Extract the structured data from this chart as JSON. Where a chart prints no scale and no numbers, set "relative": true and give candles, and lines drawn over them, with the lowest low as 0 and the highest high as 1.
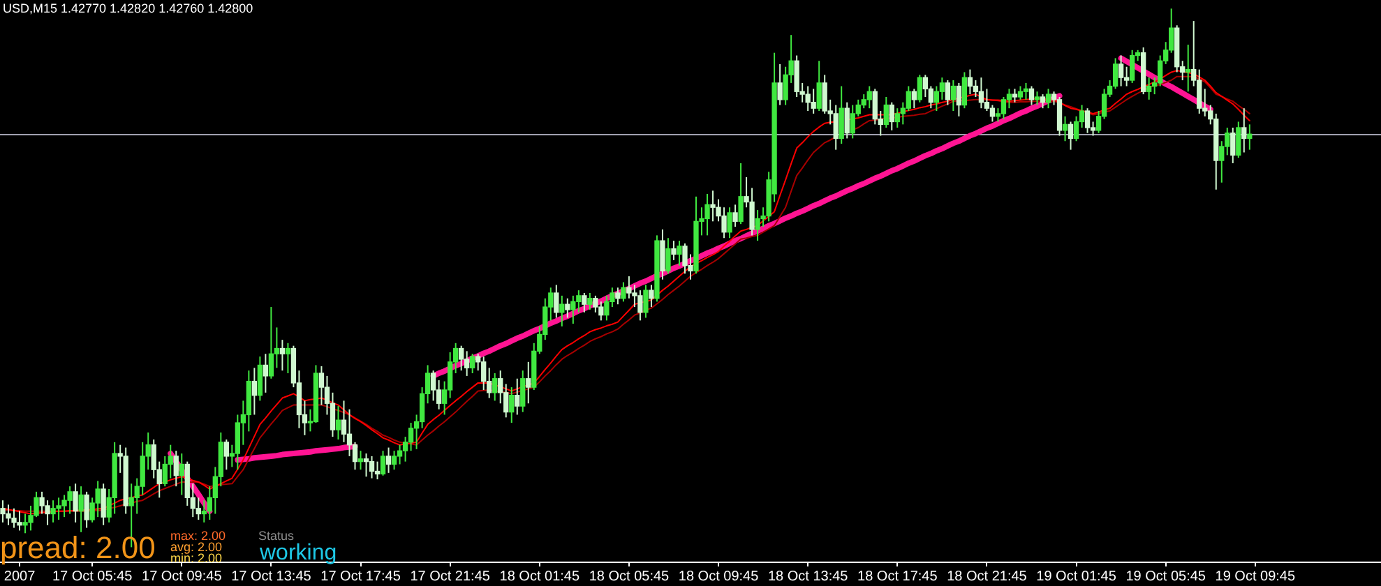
{
  "chart_data": {
    "type": "candlestick",
    "title": "USD,M15 1.42770 1.42820 1.42760 1.42800",
    "relative": true,
    "categories": [
      null,
      null,
      null,
      "2007",
      null,
      null,
      null,
      null,
      null,
      null,
      null,
      null,
      null,
      null,
      null,
      null,
      "17 Oct 05:45",
      null,
      null,
      null,
      null,
      null,
      null,
      null,
      null,
      null,
      null,
      null,
      null,
      null,
      null,
      null,
      "17 Oct 09:45",
      null,
      null,
      null,
      null,
      null,
      null,
      null,
      null,
      null,
      null,
      null,
      null,
      null,
      null,
      null,
      "17 Oct 13:45",
      null,
      null,
      null,
      null,
      null,
      null,
      null,
      null,
      null,
      null,
      null,
      null,
      null,
      null,
      null,
      "17 Oct 17:45",
      null,
      null,
      null,
      null,
      null,
      null,
      null,
      null,
      null,
      null,
      null,
      null,
      null,
      null,
      null,
      "17 Oct 21:45",
      null,
      null,
      null,
      null,
      null,
      null,
      null,
      null,
      null,
      null,
      null,
      null,
      null,
      null,
      null,
      "18 Oct 01:45",
      null,
      null,
      null,
      null,
      null,
      null,
      null,
      null,
      null,
      null,
      null,
      null,
      null,
      null,
      null,
      "18 Oct 05:45",
      null,
      null,
      null,
      null,
      null,
      null,
      null,
      null,
      null,
      null,
      null,
      null,
      null,
      null,
      null,
      "18 Oct 09:45",
      null,
      null,
      null,
      null,
      null,
      null,
      null,
      null,
      null,
      null,
      null,
      null,
      null,
      null,
      null,
      "18 Oct 13:45",
      null,
      null,
      null,
      null,
      null,
      null,
      null,
      null,
      null,
      null,
      null,
      null,
      null,
      null,
      null,
      "18 Oct 17:45",
      null,
      null,
      null,
      null,
      null,
      null,
      null,
      null,
      null,
      null,
      null,
      null,
      null,
      null,
      null,
      "18 Oct 21:45",
      null,
      null,
      null,
      null,
      null,
      null,
      null,
      null,
      null,
      null,
      null,
      null,
      null,
      null,
      null,
      "19 Oct 01:45",
      null,
      null,
      null,
      null,
      null,
      null,
      null,
      null,
      null,
      null,
      null,
      null,
      null,
      null,
      null,
      "19 Oct 05:45",
      null,
      null,
      null,
      null,
      null,
      null,
      null,
      null,
      null,
      null,
      null,
      null,
      null,
      null,
      null,
      "19 Oct 09:45",
      null,
      null,
      null,
      null,
      null,
      null,
      null,
      null,
      null,
      null,
      null,
      null,
      null,
      null,
      null,
      null,
      null,
      null,
      null,
      null,
      null,
      null
    ],
    "colors": [
      "#d0f8d0",
      "#d0f8d0",
      "#d0f8d0",
      "#d0f8d0",
      "#40e840",
      "#40e840",
      "#40e840",
      "#d0f8d0",
      "#d0f8d0",
      "#40e840",
      "#40e840",
      "#40e840",
      "#40e840",
      "#d0f8d0",
      "#40e840",
      "#d0f8d0",
      "#40e840",
      "#40e840",
      "#d0f8d0",
      "#40e840",
      "#40e840",
      "#d0f8d0",
      "#d0f8d0",
      "#40e840",
      "#40e840",
      "#40e840",
      "#40e840",
      "#d0f8d0",
      "#d0f8d0",
      "#40e840",
      "#40e840",
      "#d0f8d0",
      "#40e840",
      "#d0f8d0",
      "#d0f8d0",
      "#d0f8d0",
      "#40e840",
      "#40e840",
      "#40e840",
      "#40e840",
      "#d0f8d0",
      "#40e840",
      "#40e840",
      "#40e840",
      "#40e840",
      "#d0f8d0",
      "#40e840",
      "#d0f8d0",
      "#40e840",
      "#40e840",
      "#d0f8d0",
      "#40e840",
      "#d0f8d0",
      "#d0f8d0",
      "#d0f8d0",
      "#40e840",
      "#40e840",
      "#d0f8d0",
      "#d0f8d0",
      "#d0f8d0",
      "#40e840",
      "#d0f8d0",
      "#d0f8d0",
      "#d0f8d0",
      "#40e840",
      "#d0f8d0",
      "#d0f8d0",
      "#d0f8d0",
      "#40e840",
      "#d0f8d0",
      "#40e840",
      "#40e840",
      "#40e840",
      "#40e840",
      "#40e840",
      "#40e840",
      "#40e840",
      "#d0f8d0",
      "#d0f8d0",
      "#40e840",
      "#40e840",
      "#40e840",
      "#d0f8d0",
      "#d0f8d0",
      "#40e840",
      "#d0f8d0",
      "#d0f8d0",
      "#d0f8d0",
      "#40e840",
      "#d0f8d0",
      "#d0f8d0",
      "#40e840",
      "#d0f8d0",
      "#40e840",
      "#d0f8d0",
      "#40e840",
      "#40e840",
      "#40e840",
      "#40e840",
      "#d0f8d0",
      "#40e840",
      "#d0f8d0",
      "#40e840",
      "#40e840",
      "#d0f8d0",
      "#40e840",
      "#d0f8d0",
      "#d0f8d0",
      "#40e840",
      "#40e840",
      "#d0f8d0",
      "#40e840",
      "#d0f8d0",
      "#d0f8d0",
      "#d0f8d0",
      "#40e840",
      "#d0f8d0",
      "#40e840",
      "#d0f8d0",
      "#40e840",
      "#d0f8d0",
      "#40e840",
      "#d0f8d0",
      "#d0f8d0",
      "#40e840",
      "#40e840",
      "#40e840",
      "#d0f8d0",
      "#d0f8d0",
      "#d0f8d0",
      "#40e840",
      "#d0f8d0",
      "#40e840",
      "#d0f8d0",
      "#d0f8d0",
      "#40e840",
      "#40e840",
      "#40e840",
      "#40e840",
      "#d0f8d0",
      "#40e840",
      "#40e840",
      "#d0f8d0",
      "#d0f8d0",
      "#d0f8d0",
      "#d0f8d0",
      "#40e840",
      "#d0f8d0",
      "#d0f8d0",
      "#d0f8d0",
      "#40e840",
      "#d0f8d0",
      "#40e840",
      "#40e840",
      "#40e840",
      "#40e840",
      "#d0f8d0",
      "#d0f8d0",
      "#40e840",
      "#d0f8d0",
      "#40e840",
      "#40e840",
      "#40e840",
      "#d0f8d0",
      "#40e840",
      "#d0f8d0",
      "#d0f8d0",
      "#40e840",
      "#40e840",
      "#d0f8d0",
      "#40e840",
      "#d0f8d0",
      "#40e840",
      "#d0f8d0",
      "#d0f8d0",
      "#d0f8d0",
      "#d0f8d0",
      "#d0f8d0",
      "#40e840",
      "#40e840",
      "#40e840",
      "#d0f8d0",
      "#40e840",
      "#40e840",
      "#d0f8d0",
      "#40e840",
      "#d0f8d0",
      "#40e840",
      "#d0f8d0",
      "#d0f8d0",
      "#40e840",
      "#d0f8d0",
      "#40e840",
      "#40e840",
      "#d0f8d0",
      "#d0f8d0",
      "#40e840",
      "#40e840",
      "#40e840",
      "#40e840",
      "#d0f8d0",
      "#d0f8d0",
      "#40e840",
      "#40e840",
      "#d0f8d0",
      "#40e840",
      "#40e840",
      "#40e840",
      "#40e840",
      "#40e840",
      "#d0f8d0",
      "#d0f8d0",
      "#40e840",
      "#d0f8d0",
      "#d0f8d0",
      "#d0f8d0",
      "#d0f8d0",
      "#d0f8d0",
      "#40e840",
      "#40e840",
      "#d0f8d0",
      "#40e840",
      "#d0f8d0",
      "#40e840",
      null,
      null,
      null,
      null,
      null,
      null,
      null,
      null,
      null,
      null,
      null,
      null,
      null,
      null,
      null,
      null,
      null,
      null,
      null,
      null,
      null,
      null,
      null
    ],
    "ohlc": [
      [
        0.072,
        0.087,
        0.046,
        0.062
      ],
      [
        0.062,
        0.079,
        0.041,
        0.054
      ],
      [
        0.054,
        0.072,
        0.036,
        0.046
      ],
      [
        0.046,
        0.067,
        0.031,
        0.041
      ],
      [
        0.041,
        0.062,
        0.026,
        0.046
      ],
      [
        0.046,
        0.077,
        0.031,
        0.059
      ],
      [
        0.059,
        0.103,
        0.056,
        0.092
      ],
      [
        0.092,
        0.103,
        0.062,
        0.077
      ],
      [
        0.077,
        0.087,
        0.041,
        0.062
      ],
      [
        0.062,
        0.087,
        0.046,
        0.072
      ],
      [
        0.072,
        0.092,
        0.051,
        0.077
      ],
      [
        0.077,
        0.097,
        0.056,
        0.087
      ],
      [
        0.087,
        0.113,
        0.062,
        0.103
      ],
      [
        0.103,
        0.118,
        0.046,
        0.067
      ],
      [
        0.067,
        0.113,
        0.028,
        0.097
      ],
      [
        0.097,
        0.103,
        0.036,
        0.051
      ],
      [
        0.051,
        0.092,
        0.046,
        0.082
      ],
      [
        0.082,
        0.123,
        0.056,
        0.108
      ],
      [
        0.108,
        0.118,
        0.041,
        0.056
      ],
      [
        0.056,
        0.108,
        0.046,
        0.092
      ],
      [
        0.092,
        0.195,
        0.062,
        0.174
      ],
      [
        0.174,
        0.19,
        0.138,
        0.169
      ],
      [
        0.169,
        0.185,
        0.062,
        0.077
      ],
      [
        0.077,
        0.118,
        0,
        0.092
      ],
      [
        0.092,
        0.128,
        0.062,
        0.113
      ],
      [
        0.113,
        0.195,
        0.097,
        0.169
      ],
      [
        0.169,
        0.213,
        0.144,
        0.19
      ],
      [
        0.19,
        0.2,
        0.128,
        0.144
      ],
      [
        0.144,
        0.159,
        0.092,
        0.118
      ],
      [
        0.118,
        0.169,
        0.113,
        0.154
      ],
      [
        0.154,
        0.19,
        0.128,
        0.169
      ],
      [
        0.169,
        0.179,
        0.113,
        0.133
      ],
      [
        0.133,
        0.174,
        0.097,
        0.154
      ],
      [
        0.154,
        0.159,
        0.077,
        0.092
      ],
      [
        0.092,
        0.118,
        0.056,
        0.072
      ],
      [
        0.072,
        0.092,
        0.051,
        0.062
      ],
      [
        0.062,
        0.087,
        0.046,
        0.067
      ],
      [
        0.067,
        0.113,
        0.051,
        0.092
      ],
      [
        0.092,
        0.149,
        0.062,
        0.131
      ],
      [
        0.131,
        0.213,
        0.113,
        0.195
      ],
      [
        0.195,
        0.2,
        0.144,
        0.169
      ],
      [
        0.169,
        0.19,
        0.149,
        0.174
      ],
      [
        0.174,
        0.246,
        0.144,
        0.231
      ],
      [
        0.231,
        0.272,
        0.19,
        0.246
      ],
      [
        0.246,
        0.328,
        0.215,
        0.308
      ],
      [
        0.308,
        0.333,
        0.246,
        0.282
      ],
      [
        0.282,
        0.354,
        0.272,
        0.338
      ],
      [
        0.338,
        0.359,
        0.287,
        0.318
      ],
      [
        0.318,
        0.446,
        0.313,
        0.359
      ],
      [
        0.359,
        0.408,
        0.333,
        0.369
      ],
      [
        0.369,
        0.385,
        0.328,
        0.359
      ],
      [
        0.359,
        0.379,
        0.323,
        0.369
      ],
      [
        0.369,
        0.374,
        0.297,
        0.305
      ],
      [
        0.305,
        0.328,
        0.221,
        0.246
      ],
      [
        0.246,
        0.272,
        0.208,
        0.231
      ],
      [
        0.231,
        0.256,
        0.215,
        0.233
      ],
      [
        0.233,
        0.338,
        0.231,
        0.323
      ],
      [
        0.323,
        0.336,
        0.264,
        0.297
      ],
      [
        0.297,
        0.318,
        0.246,
        0.267
      ],
      [
        0.267,
        0.287,
        0.205,
        0.218
      ],
      [
        0.218,
        0.262,
        0.2,
        0.236
      ],
      [
        0.236,
        0.272,
        0.195,
        0.21
      ],
      [
        0.21,
        0.256,
        0.169,
        0.19
      ],
      [
        0.19,
        0.195,
        0.144,
        0.159
      ],
      [
        0.159,
        0.179,
        0.144,
        0.164
      ],
      [
        0.164,
        0.174,
        0.131,
        0.159
      ],
      [
        0.159,
        0.169,
        0.128,
        0.141
      ],
      [
        0.141,
        0.159,
        0.126,
        0.136
      ],
      [
        0.136,
        0.179,
        0.133,
        0.169
      ],
      [
        0.169,
        0.185,
        0.138,
        0.154
      ],
      [
        0.154,
        0.179,
        0.144,
        0.169
      ],
      [
        0.169,
        0.19,
        0.154,
        0.179
      ],
      [
        0.179,
        0.205,
        0.159,
        0.195
      ],
      [
        0.195,
        0.231,
        0.179,
        0.221
      ],
      [
        0.221,
        0.246,
        0.182,
        0.233
      ],
      [
        0.233,
        0.297,
        0.221,
        0.285
      ],
      [
        0.285,
        0.338,
        0.267,
        0.323
      ],
      [
        0.323,
        0.328,
        0.272,
        0.292
      ],
      [
        0.292,
        0.31,
        0.256,
        0.267
      ],
      [
        0.267,
        0.308,
        0.246,
        0.292
      ],
      [
        0.292,
        0.362,
        0.277,
        0.344
      ],
      [
        0.344,
        0.379,
        0.323,
        0.369
      ],
      [
        0.369,
        0.374,
        0.328,
        0.349
      ],
      [
        0.349,
        0.364,
        0.318,
        0.333
      ],
      [
        0.333,
        0.359,
        0.323,
        0.354
      ],
      [
        0.354,
        0.359,
        0.328,
        0.344
      ],
      [
        0.344,
        0.354,
        0.292,
        0.308
      ],
      [
        0.308,
        0.333,
        0.277,
        0.287
      ],
      [
        0.287,
        0.323,
        0.272,
        0.313
      ],
      [
        0.313,
        0.328,
        0.267,
        0.287
      ],
      [
        0.287,
        0.303,
        0.241,
        0.251
      ],
      [
        0.251,
        0.297,
        0.231,
        0.282
      ],
      [
        0.282,
        0.313,
        0.246,
        0.262
      ],
      [
        0.262,
        0.328,
        0.251,
        0.313
      ],
      [
        0.313,
        0.344,
        0.267,
        0.297
      ],
      [
        0.297,
        0.379,
        0.292,
        0.364
      ],
      [
        0.364,
        0.41,
        0.359,
        0.395
      ],
      [
        0.395,
        0.462,
        0.385,
        0.446
      ],
      [
        0.446,
        0.482,
        0.421,
        0.472
      ],
      [
        0.472,
        0.487,
        0.426,
        0.436
      ],
      [
        0.436,
        0.467,
        0.41,
        0.451
      ],
      [
        0.451,
        0.462,
        0.426,
        0.441
      ],
      [
        0.441,
        0.467,
        0.415,
        0.456
      ],
      [
        0.456,
        0.477,
        0.436,
        0.467
      ],
      [
        0.467,
        0.472,
        0.436,
        0.451
      ],
      [
        0.451,
        0.472,
        0.441,
        0.462
      ],
      [
        0.462,
        0.467,
        0.436,
        0.446
      ],
      [
        0.446,
        0.456,
        0.421,
        0.431
      ],
      [
        0.431,
        0.467,
        0.421,
        0.456
      ],
      [
        0.456,
        0.482,
        0.446,
        0.472
      ],
      [
        0.472,
        0.482,
        0.451,
        0.462
      ],
      [
        0.462,
        0.492,
        0.456,
        0.482
      ],
      [
        0.482,
        0.503,
        0.462,
        0.472
      ],
      [
        0.472,
        0.487,
        0.446,
        0.467
      ],
      [
        0.467,
        0.477,
        0.421,
        0.436
      ],
      [
        0.436,
        0.487,
        0.426,
        0.477
      ],
      [
        0.477,
        0.487,
        0.446,
        0.462
      ],
      [
        0.462,
        0.579,
        0.456,
        0.569
      ],
      [
        0.569,
        0.59,
        0.497,
        0.513
      ],
      [
        0.513,
        0.574,
        0.508,
        0.554
      ],
      [
        0.554,
        0.569,
        0.533,
        0.544
      ],
      [
        0.544,
        0.569,
        0.523,
        0.559
      ],
      [
        0.559,
        0.564,
        0.508,
        0.523
      ],
      [
        0.523,
        0.544,
        0.497,
        0.513
      ],
      [
        0.513,
        0.651,
        0.508,
        0.605
      ],
      [
        0.605,
        0.631,
        0.579,
        0.61
      ],
      [
        0.61,
        0.656,
        0.579,
        0.636
      ],
      [
        0.636,
        0.662,
        0.605,
        0.631
      ],
      [
        0.631,
        0.646,
        0.605,
        0.615
      ],
      [
        0.615,
        0.631,
        0.574,
        0.585
      ],
      [
        0.585,
        0.631,
        0.574,
        0.621
      ],
      [
        0.621,
        0.636,
        0.595,
        0.605
      ],
      [
        0.605,
        0.713,
        0.6,
        0.651
      ],
      [
        0.651,
        0.687,
        0.631,
        0.641
      ],
      [
        0.641,
        0.667,
        0.579,
        0.59
      ],
      [
        0.59,
        0.626,
        0.569,
        0.61
      ],
      [
        0.61,
        0.631,
        0.595,
        0.615
      ],
      [
        0.615,
        0.697,
        0.605,
        0.682
      ],
      [
        0.656,
        0.918,
        0.641,
        0.862
      ],
      [
        0.862,
        0.897,
        0.821,
        0.831
      ],
      [
        0.831,
        0.892,
        0.821,
        0.877
      ],
      [
        0.877,
        0.951,
        0.862,
        0.903
      ],
      [
        0.903,
        0.913,
        0.836,
        0.846
      ],
      [
        0.846,
        0.862,
        0.826,
        0.841
      ],
      [
        0.841,
        0.856,
        0.81,
        0.826
      ],
      [
        0.826,
        0.851,
        0.805,
        0.815
      ],
      [
        0.815,
        0.903,
        0.81,
        0.862
      ],
      [
        0.862,
        0.877,
        0.805,
        0.81
      ],
      [
        0.81,
        0.831,
        0.785,
        0.805
      ],
      [
        0.805,
        0.821,
        0.738,
        0.759
      ],
      [
        0.759,
        0.856,
        0.749,
        0.815
      ],
      [
        0.815,
        0.826,
        0.759,
        0.769
      ],
      [
        0.769,
        0.821,
        0.759,
        0.805
      ],
      [
        0.805,
        0.831,
        0.8,
        0.821
      ],
      [
        0.821,
        0.841,
        0.815,
        0.831
      ],
      [
        0.831,
        0.856,
        0.815,
        0.846
      ],
      [
        0.846,
        0.851,
        0.785,
        0.795
      ],
      [
        0.795,
        0.81,
        0.764,
        0.785
      ],
      [
        0.785,
        0.836,
        0.779,
        0.821
      ],
      [
        0.821,
        0.826,
        0.774,
        0.79
      ],
      [
        0.79,
        0.815,
        0.779,
        0.805
      ],
      [
        0.805,
        0.826,
        0.785,
        0.815
      ],
      [
        0.815,
        0.856,
        0.81,
        0.846
      ],
      [
        0.846,
        0.851,
        0.815,
        0.831
      ],
      [
        0.831,
        0.877,
        0.826,
        0.872
      ],
      [
        0.872,
        0.877,
        0.836,
        0.851
      ],
      [
        0.851,
        0.856,
        0.815,
        0.826
      ],
      [
        0.826,
        0.856,
        0.81,
        0.846
      ],
      [
        0.846,
        0.872,
        0.831,
        0.862
      ],
      [
        0.862,
        0.867,
        0.821,
        0.831
      ],
      [
        0.831,
        0.867,
        0.81,
        0.856
      ],
      [
        0.856,
        0.862,
        0.8,
        0.821
      ],
      [
        0.821,
        0.882,
        0.815,
        0.872
      ],
      [
        0.872,
        0.887,
        0.841,
        0.856
      ],
      [
        0.856,
        0.867,
        0.836,
        0.846
      ],
      [
        0.846,
        0.872,
        0.815,
        0.826
      ],
      [
        0.826,
        0.851,
        0.81,
        0.815
      ],
      [
        0.815,
        0.821,
        0.79,
        0.8
      ],
      [
        0.8,
        0.815,
        0.79,
        0.805
      ],
      [
        0.805,
        0.836,
        0.795,
        0.831
      ],
      [
        0.831,
        0.851,
        0.815,
        0.841
      ],
      [
        0.841,
        0.851,
        0.826,
        0.836
      ],
      [
        0.836,
        0.856,
        0.831,
        0.846
      ],
      [
        0.846,
        0.862,
        0.831,
        0.851
      ],
      [
        0.851,
        0.856,
        0.821,
        0.831
      ],
      [
        0.831,
        0.846,
        0.821,
        0.836
      ],
      [
        0.836,
        0.841,
        0.815,
        0.826
      ],
      [
        0.826,
        0.851,
        0.815,
        0.841
      ],
      [
        0.841,
        0.846,
        0.821,
        0.831
      ],
      [
        0.831,
        0.836,
        0.764,
        0.774
      ],
      [
        0.774,
        0.8,
        0.754,
        0.785
      ],
      [
        0.785,
        0.79,
        0.738,
        0.759
      ],
      [
        0.759,
        0.8,
        0.754,
        0.79
      ],
      [
        0.79,
        0.821,
        0.779,
        0.81
      ],
      [
        0.81,
        0.815,
        0.769,
        0.779
      ],
      [
        0.779,
        0.79,
        0.764,
        0.774
      ],
      [
        0.774,
        0.81,
        0.769,
        0.8
      ],
      [
        0.8,
        0.851,
        0.795,
        0.841
      ],
      [
        0.841,
        0.867,
        0.836,
        0.856
      ],
      [
        0.856,
        0.908,
        0.851,
        0.897
      ],
      [
        0.897,
        0.913,
        0.856,
        0.872
      ],
      [
        0.872,
        0.892,
        0.856,
        0.867
      ],
      [
        0.867,
        0.923,
        0.862,
        0.913
      ],
      [
        0.913,
        0.923,
        0.903,
        0.918
      ],
      [
        0.918,
        0.928,
        0.841,
        0.846
      ],
      [
        0.846,
        0.872,
        0.831,
        0.856
      ],
      [
        0.856,
        0.872,
        0.841,
        0.862
      ],
      [
        0.862,
        0.913,
        0.856,
        0.903
      ],
      [
        0.903,
        0.938,
        0.897,
        0.923
      ],
      [
        0.923,
        1,
        0.918,
        0.964
      ],
      [
        0.964,
        0.969,
        0.882,
        0.892
      ],
      [
        0.892,
        0.903,
        0.867,
        0.882
      ],
      [
        0.882,
        0.933,
        0.846,
        0.887
      ],
      [
        0.887,
        0.977,
        0.856,
        0.867
      ],
      [
        0.867,
        0.887,
        0.805,
        0.815
      ],
      [
        0.815,
        0.851,
        0.8,
        0.81
      ],
      [
        0.81,
        0.821,
        0.785,
        0.795
      ],
      [
        0.795,
        0.805,
        0.664,
        0.718
      ],
      [
        0.718,
        0.754,
        0.677,
        0.744
      ],
      [
        0.744,
        0.779,
        0.728,
        0.769
      ],
      [
        0.769,
        0.779,
        0.713,
        0.728
      ],
      [
        0.728,
        0.79,
        0.723,
        0.779
      ],
      [
        0.779,
        0.815,
        0.733,
        0.759
      ],
      [
        0.759,
        0.785,
        0.738,
        0.767
      ],
      null,
      null,
      null,
      null,
      null,
      null,
      null,
      null,
      null,
      null,
      null,
      null,
      null,
      null,
      null,
      null,
      null,
      null,
      null,
      null,
      null,
      null,
      null
    ],
    "series": [
      {
        "type": "line",
        "color": "#ff0000",
        "values": [
          0.072,
          0.07,
          0.068,
          0.066,
          0.064,
          0.062,
          0.063,
          0.064,
          0.065,
          0.066,
          0.067,
          0.067,
          0.068,
          0.068,
          0.069,
          0.069,
          0.07,
          0.071,
          0.072,
          0.077,
          0.082,
          0.087,
          0.09,
          0.092,
          0.095,
          0.097,
          0.104,
          0.111,
          0.118,
          0.121,
          0.125,
          0.128,
          0.131,
          0.128,
          0.124,
          0.121,
          0.115,
          0.108,
          0.113,
          0.118,
          0.123,
          0.128,
          0.145,
          0.162,
          0.184,
          0.206,
          0.228,
          0.24,
          0.253,
          0.265,
          0.277,
          0.281,
          0.285,
          0.279,
          0.272,
          0.274,
          0.275,
          0.277,
          0.273,
          0.268,
          0.264,
          0.255,
          0.246,
          0.239,
          0.233,
          0.226,
          0.218,
          0.211,
          0.203,
          0.199,
          0.194,
          0.19,
          0.192,
          0.193,
          0.195,
          0.212,
          0.228,
          0.237,
          0.245,
          0.254,
          0.263,
          0.272,
          0.28,
          0.289,
          0.297,
          0.305,
          0.305,
          0.305,
          0.301,
          0.298,
          0.294,
          0.29,
          0.294,
          0.298,
          0.301,
          0.305,
          0.317,
          0.33,
          0.342,
          0.355,
          0.367,
          0.374,
          0.38,
          0.387,
          0.393,
          0.4,
          0.404,
          0.407,
          0.411,
          0.414,
          0.418,
          0.429,
          0.44,
          0.451,
          0.454,
          0.456,
          0.459,
          0.468,
          0.477,
          0.485,
          0.494,
          0.503,
          0.512,
          0.521,
          0.527,
          0.532,
          0.538,
          0.543,
          0.549,
          0.559,
          0.568,
          0.578,
          0.587,
          0.59,
          0.594,
          0.597,
          0.606,
          0.614,
          0.623,
          0.653,
          0.682,
          0.712,
          0.741,
          0.751,
          0.762,
          0.772,
          0.78,
          0.787,
          0.789,
          0.79,
          null,
          0.794,
          0.795,
          0.797,
          0.8,
          0.803,
          0.803,
          0.803,
          0.803,
          0.803,
          0.806,
          0.808,
          0.811,
          0.813,
          0.816,
          0.818,
          0.821,
          0.823,
          0.826,
          0.828,
          0.831,
          0.834,
          0.836,
          0.839,
          0.841,
          0.836,
          0.831,
          0.83,
          0.83,
          0.829,
          0.828,
          0.829,
          0.83,
          0.831,
          0.832,
          0.833,
          0.832,
          0.832,
          0.831,
          0.826,
          0.82,
          0.815,
          0.813,
          0.81,
          0.808,
          0.805,
          0.808,
          0.812,
          0.815,
          0.824,
          0.832,
          0.841,
          0.846,
          0.85,
          0.855,
          0.859,
          0.864,
          0.869,
          0.876,
          0.882,
          0.885,
          0.883,
          0.881,
          0.879,
          0.873,
          0.867,
          0.856,
          0.844,
          0.837,
          0.83,
          0.823,
          0.813,
          0.802,
          0.792,
          null,
          null,
          null,
          null,
          null,
          null,
          null,
          null,
          null,
          null,
          null,
          null,
          null,
          null,
          null,
          null,
          null,
          null,
          null,
          null,
          null,
          null,
          null
        ]
      },
      {
        "type": "line",
        "color": "#a80000",
        "values": [
          0.069,
          0.069,
          0.068,
          0.068,
          0.067,
          0.067,
          0.067,
          0.067,
          0.067,
          0.067,
          0.067,
          0.067,
          0.067,
          0.067,
          0.067,
          0.067,
          0.068,
          0.068,
          0.069,
          0.072,
          0.074,
          0.077,
          0.08,
          0.082,
          0.085,
          0.087,
          0.093,
          0.099,
          0.105,
          0.109,
          0.113,
          0.117,
          0.121,
          0.121,
          0.121,
          0.121,
          0.117,
          0.113,
          0.114,
          0.116,
          0.117,
          0.118,
          0.131,
          0.144,
          0.164,
          0.183,
          0.203,
          0.216,
          0.229,
          0.241,
          0.254,
          0.259,
          0.264,
          0.264,
          0.264,
          0.264,
          0.264,
          0.264,
          0.261,
          0.257,
          0.254,
          0.25,
          0.246,
          0.24,
          0.234,
          0.228,
          0.221,
          0.215,
          0.208,
          0.204,
          0.199,
          0.195,
          0.193,
          0.192,
          0.19,
          0.199,
          0.208,
          0.216,
          0.225,
          0.233,
          0.242,
          0.251,
          0.261,
          0.271,
          0.28,
          0.29,
          0.291,
          0.292,
          0.29,
          0.289,
          0.287,
          0.285,
          0.288,
          0.291,
          0.294,
          0.297,
          0.307,
          0.318,
          0.328,
          0.339,
          0.349,
          0.356,
          0.362,
          0.369,
          0.375,
          0.382,
          0.387,
          0.391,
          0.396,
          0.4,
          0.405,
          0.414,
          0.422,
          0.431,
          0.435,
          0.44,
          0.444,
          0.452,
          0.46,
          0.469,
          0.477,
          0.485,
          0.494,
          0.503,
          0.51,
          0.516,
          0.523,
          0.529,
          0.536,
          0.545,
          0.554,
          0.563,
          0.572,
          0.574,
          0.577,
          0.579,
          0.585,
          0.591,
          0.597,
          0.614,
          0.631,
          0.661,
          0.69,
          0.704,
          0.719,
          0.733,
          0.742,
          0.751,
          0.756,
          0.762,
          null,
          null,
          0.775,
          0.779,
          0.786,
          0.792,
          0.793,
          0.795,
          0.796,
          0.797,
          0.798,
          0.8,
          0.801,
          0.802,
          0.804,
          0.805,
          0.81,
          0.814,
          0.819,
          0.823,
          0.828,
          0.829,
          0.829,
          0.83,
          0.831,
          0.831,
          0.831,
          0.83,
          0.829,
          0.827,
          0.826,
          0.826,
          0.827,
          0.827,
          0.828,
          0.828,
          0.828,
          0.828,
          0.828,
          0.825,
          0.821,
          0.818,
          0.814,
          0.81,
          0.807,
          0.803,
          0.805,
          0.808,
          0.81,
          0.817,
          0.824,
          0.831,
          0.837,
          0.843,
          0.848,
          0.854,
          0.857,
          0.859,
          0.863,
          0.867,
          0.874,
          0.874,
          0.874,
          0.874,
          0.869,
          0.864,
          0.853,
          0.841,
          0.837,
          0.832,
          0.828,
          0.82,
          0.813,
          0.805,
          null,
          null,
          null,
          null,
          null,
          null,
          null,
          null,
          null,
          null,
          null,
          null,
          null,
          null,
          null,
          null,
          null,
          null,
          null,
          null,
          null,
          null,
          null
        ]
      },
      {
        "type": "line",
        "color": "#ff1493",
        "values": [
          null,
          null,
          null,
          null,
          null,
          null,
          null,
          null,
          null,
          null,
          null,
          null,
          null,
          null,
          null,
          null,
          null,
          null,
          null,
          null,
          null,
          null,
          null,
          null,
          null,
          null,
          null,
          null,
          null,
          null,
          0.174,
          0.159,
          0.143,
          0.128,
          0.113,
          0.098,
          0.082,
          0.067,
          null,
          null,
          null,
          null,
          0.162,
          0.163,
          0.164,
          0.166,
          0.167,
          0.168,
          0.169,
          0.17,
          0.172,
          0.173,
          0.174,
          0.175,
          0.176,
          0.177,
          0.179,
          0.18,
          0.181,
          0.182,
          0.183,
          0.185,
          0.186,
          0.187,
          null,
          null,
          null,
          null,
          null,
          null,
          null,
          null,
          null,
          null,
          null,
          null,
          null,
          0.318,
          0.323,
          0.327,
          0.332,
          0.337,
          0.341,
          0.346,
          0.351,
          0.355,
          0.36,
          0.364,
          0.369,
          0.374,
          0.378,
          0.383,
          0.388,
          0.392,
          0.397,
          0.402,
          0.406,
          0.411,
          0.416,
          0.42,
          0.425,
          0.429,
          0.434,
          0.439,
          0.443,
          0.448,
          0.453,
          0.457,
          0.462,
          0.467,
          0.471,
          0.476,
          0.48,
          0.485,
          0.49,
          0.494,
          0.499,
          0.504,
          0.508,
          0.513,
          0.518,
          0.522,
          0.527,
          0.532,
          0.536,
          0.541,
          0.546,
          0.55,
          0.555,
          0.559,
          0.564,
          0.569,
          0.573,
          0.578,
          0.583,
          0.587,
          0.592,
          0.597,
          0.601,
          0.606,
          0.611,
          0.615,
          0.62,
          0.624,
          0.629,
          0.634,
          0.638,
          0.643,
          0.648,
          0.652,
          0.657,
          0.662,
          0.666,
          0.671,
          0.675,
          0.68,
          0.685,
          0.689,
          0.694,
          0.699,
          0.703,
          0.708,
          0.713,
          0.717,
          0.722,
          0.727,
          0.731,
          0.736,
          0.74,
          0.745,
          0.75,
          0.754,
          0.759,
          0.764,
          0.768,
          0.773,
          0.778,
          0.782,
          0.787,
          0.792,
          0.796,
          0.801,
          0.806,
          0.81,
          0.815,
          0.819,
          0.824,
          0.829,
          0.833,
          0.838,
          null,
          null,
          null,
          null,
          null,
          null,
          null,
          null,
          null,
          null,
          0.908,
          0.902,
          0.896,
          0.89,
          0.884,
          0.878,
          0.872,
          0.866,
          0.86,
          0.855,
          0.849,
          0.843,
          0.837,
          0.831,
          0.825,
          0.819,
          0.813,
          null,
          null,
          null,
          null,
          null,
          null,
          null,
          null,
          null,
          null,
          null,
          null,
          null,
          null,
          null,
          null,
          null,
          null,
          null,
          null,
          null,
          null,
          null,
          null,
          null,
          null,
          null,
          null,
          null,
          null
        ]
      }
    ],
    "ref_lines": [
      {
        "axis": "y",
        "value": 0.767,
        "color": "#a0a0b0"
      }
    ],
    "annotations": [
      "pread: 2.00",
      "max: 2.00",
      "avg: 2.00",
      "min: 2.00",
      "Status",
      "working"
    ]
  }
}
